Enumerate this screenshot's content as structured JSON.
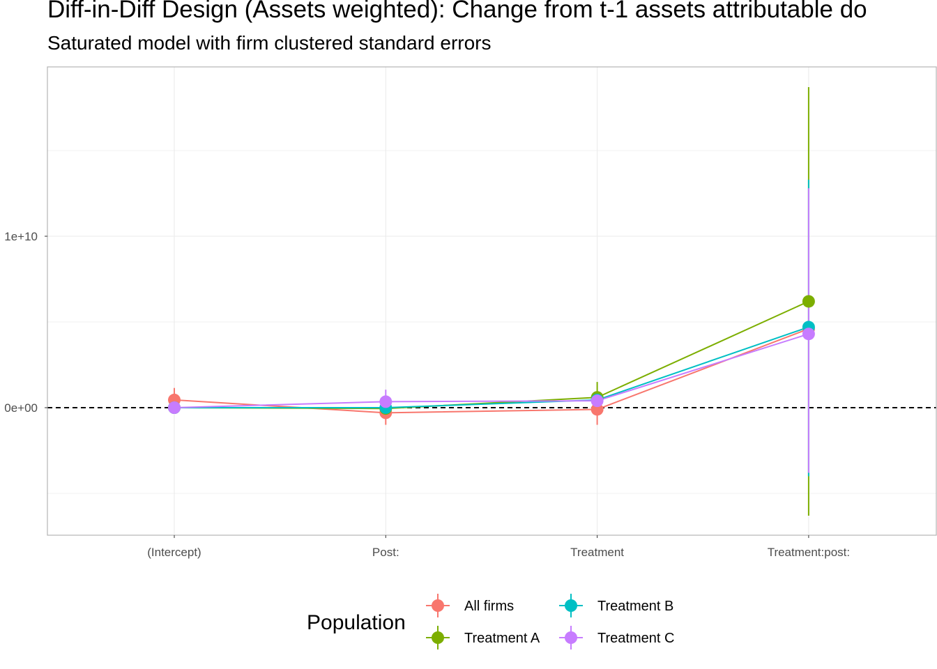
{
  "chart_data": {
    "type": "line",
    "title": "Diff-in-Diff Design (Assets weighted): Change from t-1 assets attributable do",
    "subtitle": "Saturated model with firm clustered standard errors",
    "xlabel": "",
    "ylabel": "",
    "categories": [
      "(Intercept)",
      "Post:",
      "Treatment",
      "Treatment:post:"
    ],
    "y_ticks": [
      0,
      10000000000
    ],
    "y_tick_labels": [
      "0e+00",
      "1e+10"
    ],
    "ylim": [
      -7500000000,
      19800000000
    ],
    "grid": true,
    "reference_line": {
      "y": 0,
      "style": "dashed"
    },
    "legend": {
      "title": "Population",
      "position": "bottom"
    },
    "series": [
      {
        "name": "All firms",
        "color": "#F8766D",
        "values": [
          450000000,
          -300000000,
          -100000000,
          4600000000
        ],
        "ci_low": [
          -50000000,
          -1000000000,
          -1000000000,
          4400000000
        ],
        "ci_high": [
          1150000000,
          400000000,
          500000000,
          4800000000
        ]
      },
      {
        "name": "Treatment A",
        "color": "#7CAE00",
        "values": [
          0,
          -50000000,
          600000000,
          6200000000
        ],
        "ci_low": [
          -100000000,
          -150000000,
          -200000000,
          -6300000000
        ],
        "ci_high": [
          100000000,
          100000000,
          1500000000,
          18700000000
        ]
      },
      {
        "name": "Treatment B",
        "color": "#00BFC4",
        "values": [
          0,
          0,
          450000000,
          4700000000
        ],
        "ci_low": [
          -100000000,
          -100000000,
          0,
          -4000000000
        ],
        "ci_high": [
          100000000,
          100000000,
          900000000,
          13300000000
        ]
      },
      {
        "name": "Treatment C",
        "color": "#C77CFF",
        "values": [
          0,
          350000000,
          400000000,
          4300000000
        ],
        "ci_low": [
          -100000000,
          -300000000,
          0,
          -3800000000
        ],
        "ci_high": [
          100000000,
          1050000000,
          800000000,
          12800000000
        ]
      }
    ]
  }
}
